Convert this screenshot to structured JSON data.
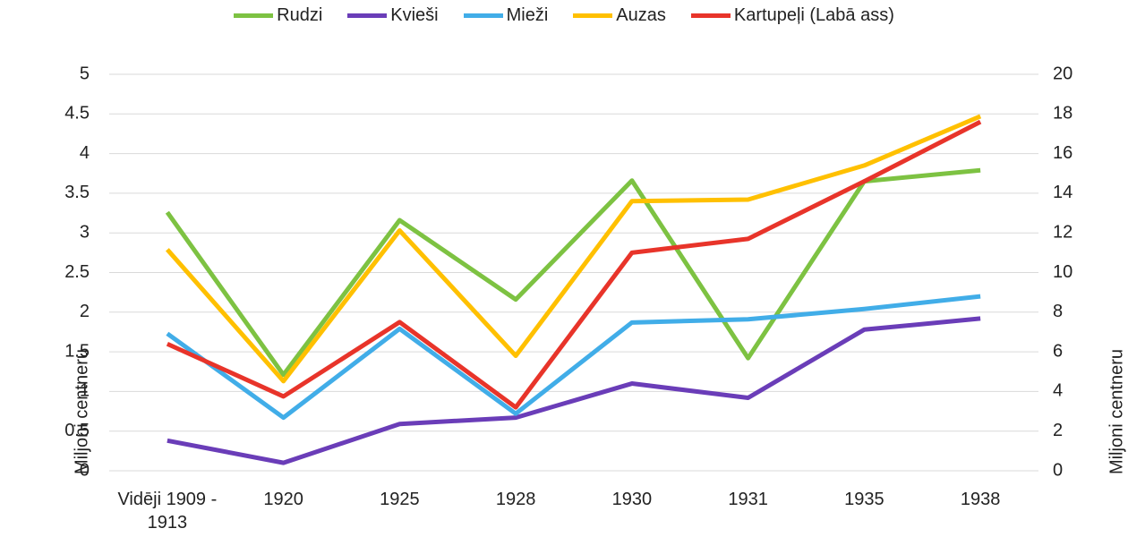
{
  "chart_data": {
    "type": "line",
    "categories": [
      "Vidēji 1909 - 1913",
      "1920",
      "1925",
      "1928",
      "1930",
      "1931",
      "1935",
      "1938"
    ],
    "series": [
      {
        "name": "Rudzi",
        "color": "#7dc242",
        "values": [
          3.26,
          1.21,
          3.16,
          2.16,
          3.66,
          1.42,
          3.65,
          3.79
        ]
      },
      {
        "name": "Kvieši",
        "color": "#6a3db8",
        "values": [
          0.38,
          0.1,
          0.59,
          0.67,
          1.1,
          0.92,
          1.78,
          1.92
        ]
      },
      {
        "name": "Mieži",
        "color": "#41ade8",
        "values": [
          1.73,
          0.67,
          1.79,
          0.72,
          1.87,
          1.91,
          2.04,
          2.2
        ]
      },
      {
        "name": "Auzas",
        "color": "#ffc000",
        "values": [
          2.79,
          1.13,
          3.03,
          1.45,
          3.4,
          3.42,
          3.85,
          4.47
        ]
      },
      {
        "name": "Kartupeļi (Labā ass)",
        "color": "#e8342a",
        "axis": "y2",
        "values": [
          6.4,
          3.75,
          7.5,
          3.2,
          11.0,
          11.7,
          14.6,
          17.6
        ]
      }
    ],
    "y_label": "Miljoni centneru",
    "y2_label": "Miljoni centneru",
    "ylim": [
      0,
      5
    ],
    "yticks": [
      0,
      0.5,
      1,
      1.5,
      2,
      2.5,
      3,
      3.5,
      4,
      4.5,
      5
    ],
    "y2lim": [
      0,
      20
    ],
    "y2ticks": [
      0,
      2,
      4,
      6,
      8,
      10,
      12,
      14,
      16,
      18,
      20
    ],
    "grid": true
  }
}
